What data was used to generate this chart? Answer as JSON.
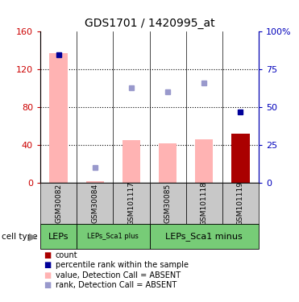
{
  "title": "GDS1701 / 1420995_at",
  "samples": [
    "GSM30082",
    "GSM30084",
    "GSM101117",
    "GSM30085",
    "GSM101118",
    "GSM101119"
  ],
  "cell_groups": [
    {
      "label": "LEPs",
      "start": 0,
      "end": 0,
      "fontsize": 8
    },
    {
      "label": "LEPs_Sca1 plus",
      "start": 1,
      "end": 2,
      "fontsize": 6
    },
    {
      "label": "LEPs_Sca1 minus",
      "start": 3,
      "end": 5,
      "fontsize": 8
    }
  ],
  "bar_values_pink": [
    137,
    2,
    45,
    42,
    46,
    0
  ],
  "bar_values_red": [
    0,
    0,
    0,
    0,
    0,
    52
  ],
  "rank_dots_dark": [
    85,
    null,
    null,
    null,
    null,
    47
  ],
  "rank_dots_light": [
    null,
    10,
    63,
    60,
    66,
    null
  ],
  "ylim_left": [
    0,
    160
  ],
  "ylim_right": [
    0,
    100
  ],
  "yticks_left": [
    0,
    40,
    80,
    120,
    160
  ],
  "yticks_right": [
    0,
    25,
    50,
    75,
    100
  ],
  "ytick_labels_right": [
    "0",
    "25",
    "50",
    "75",
    "100%"
  ],
  "color_pink": "#FFB3B3",
  "color_red": "#AA0000",
  "color_blue_dark": "#000099",
  "color_blue_light": "#9999CC",
  "color_green": "#77CC77",
  "color_gray": "#C8C8C8",
  "color_left_axis": "#CC0000",
  "color_right_axis": "#0000BB",
  "legend_items": [
    {
      "label": "count",
      "color": "#AA0000"
    },
    {
      "label": "percentile rank within the sample",
      "color": "#000099"
    },
    {
      "label": "value, Detection Call = ABSENT",
      "color": "#FFB3B3"
    },
    {
      "label": "rank, Detection Call = ABSENT",
      "color": "#9999CC"
    }
  ],
  "bar_width": 0.5
}
